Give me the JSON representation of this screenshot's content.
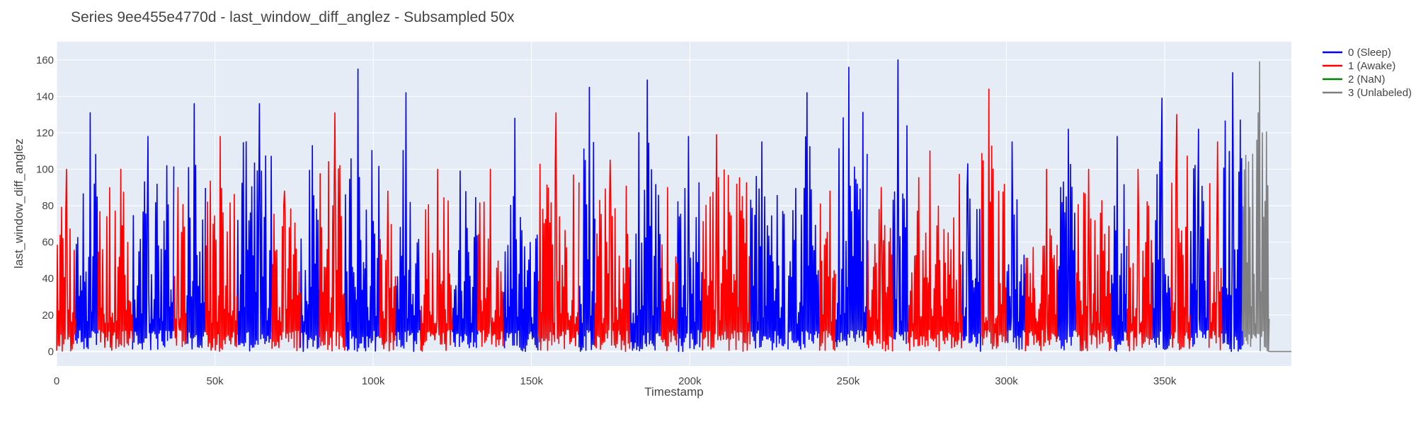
{
  "chart_data": {
    "type": "line",
    "title": "Series 9ee455e4770d - last_window_diff_anglez - Subsampled 50x",
    "xlabel": "Timestamp",
    "ylabel": "last_window_diff_anglez",
    "xlim": [
      0,
      390000
    ],
    "ylim": [
      -8,
      170
    ],
    "x_ticks": [
      0,
      50000,
      100000,
      150000,
      200000,
      250000,
      300000,
      350000
    ],
    "x_tick_labels": [
      "0",
      "50k",
      "100k",
      "150k",
      "200k",
      "250k",
      "300k",
      "350k"
    ],
    "y_ticks": [
      0,
      20,
      40,
      60,
      80,
      100,
      120,
      140,
      160
    ],
    "y_tick_labels": [
      "0",
      "20",
      "40",
      "60",
      "80",
      "100",
      "120",
      "140",
      "160"
    ],
    "grid": true,
    "legend_position": "top-right, outside plot",
    "colors": {
      "background": "#e5ecf6",
      "grid": "#ffffff",
      "sleep": "#0000ff",
      "awake": "#ff0000",
      "nan": "#008000",
      "unlabeled": "#808080"
    },
    "series": [
      {
        "name": "0 (Sleep)",
        "color": "#0000ff",
        "segments": [
          {
            "x_start": 6000,
            "x_end": 13000,
            "peak": 131
          },
          {
            "x_start": 24000,
            "x_end": 37000,
            "peak": 118
          },
          {
            "x_start": 41000,
            "x_end": 47000,
            "peak": 136
          },
          {
            "x_start": 57000,
            "x_end": 68000,
            "peak": 136
          },
          {
            "x_start": 77000,
            "x_end": 83000,
            "peak": 113
          },
          {
            "x_start": 91000,
            "x_end": 102000,
            "peak": 155
          },
          {
            "x_start": 107000,
            "x_end": 115000,
            "peak": 142
          },
          {
            "x_start": 125000,
            "x_end": 133000,
            "peak": 99
          },
          {
            "x_start": 141000,
            "x_end": 152000,
            "peak": 128
          },
          {
            "x_start": 165000,
            "x_end": 170000,
            "peak": 145
          },
          {
            "x_start": 181000,
            "x_end": 191000,
            "peak": 149
          },
          {
            "x_start": 196000,
            "x_end": 204000,
            "peak": 118
          },
          {
            "x_start": 219000,
            "x_end": 230000,
            "peak": 115
          },
          {
            "x_start": 231000,
            "x_end": 241000,
            "peak": 142
          },
          {
            "x_start": 246000,
            "x_end": 256000,
            "peak": 156
          },
          {
            "x_start": 264000,
            "x_end": 269000,
            "peak": 160
          },
          {
            "x_start": 286000,
            "x_end": 292000,
            "peak": 103
          },
          {
            "x_start": 300000,
            "x_end": 306000,
            "peak": 115
          },
          {
            "x_start": 316000,
            "x_end": 322000,
            "peak": 122
          },
          {
            "x_start": 333000,
            "x_end": 338000,
            "peak": 118
          },
          {
            "x_start": 346000,
            "x_end": 352000,
            "peak": 139
          },
          {
            "x_start": 358000,
            "x_end": 364000,
            "peak": 122
          },
          {
            "x_start": 368000,
            "x_end": 374500,
            "peak": 153
          }
        ]
      },
      {
        "name": "1 (Awake)",
        "color": "#ff0000",
        "segments": [
          {
            "x_start": 0,
            "x_end": 6000,
            "peak": 100
          },
          {
            "x_start": 13000,
            "x_end": 24000,
            "peak": 100
          },
          {
            "x_start": 37000,
            "x_end": 41000,
            "peak": 90
          },
          {
            "x_start": 47000,
            "x_end": 57000,
            "peak": 118
          },
          {
            "x_start": 68000,
            "x_end": 77000,
            "peak": 88
          },
          {
            "x_start": 83000,
            "x_end": 91000,
            "peak": 131
          },
          {
            "x_start": 102000,
            "x_end": 107000,
            "peak": 88
          },
          {
            "x_start": 115000,
            "x_end": 125000,
            "peak": 100
          },
          {
            "x_start": 133000,
            "x_end": 141000,
            "peak": 100
          },
          {
            "x_start": 152000,
            "x_end": 165000,
            "peak": 131
          },
          {
            "x_start": 170000,
            "x_end": 181000,
            "peak": 105
          },
          {
            "x_start": 191000,
            "x_end": 196000,
            "peak": 90
          },
          {
            "x_start": 204000,
            "x_end": 219000,
            "peak": 119
          },
          {
            "x_start": 241000,
            "x_end": 246000,
            "peak": 88
          },
          {
            "x_start": 256000,
            "x_end": 264000,
            "peak": 90
          },
          {
            "x_start": 269000,
            "x_end": 286000,
            "peak": 110
          },
          {
            "x_start": 292000,
            "x_end": 300000,
            "peak": 144
          },
          {
            "x_start": 306000,
            "x_end": 316000,
            "peak": 100
          },
          {
            "x_start": 322000,
            "x_end": 333000,
            "peak": 100
          },
          {
            "x_start": 338000,
            "x_end": 346000,
            "peak": 100
          },
          {
            "x_start": 352000,
            "x_end": 358000,
            "peak": 130
          },
          {
            "x_start": 364000,
            "x_end": 368000,
            "peak": 115
          }
        ]
      },
      {
        "name": "2 (NaN)",
        "color": "#008000",
        "segments": []
      },
      {
        "name": "3 (Unlabeled)",
        "color": "#808080",
        "segments": [
          {
            "x_start": 374500,
            "x_end": 383000,
            "peak": 159
          },
          {
            "x_start": 383000,
            "x_end": 390000,
            "peak": 0
          }
        ]
      }
    ]
  }
}
